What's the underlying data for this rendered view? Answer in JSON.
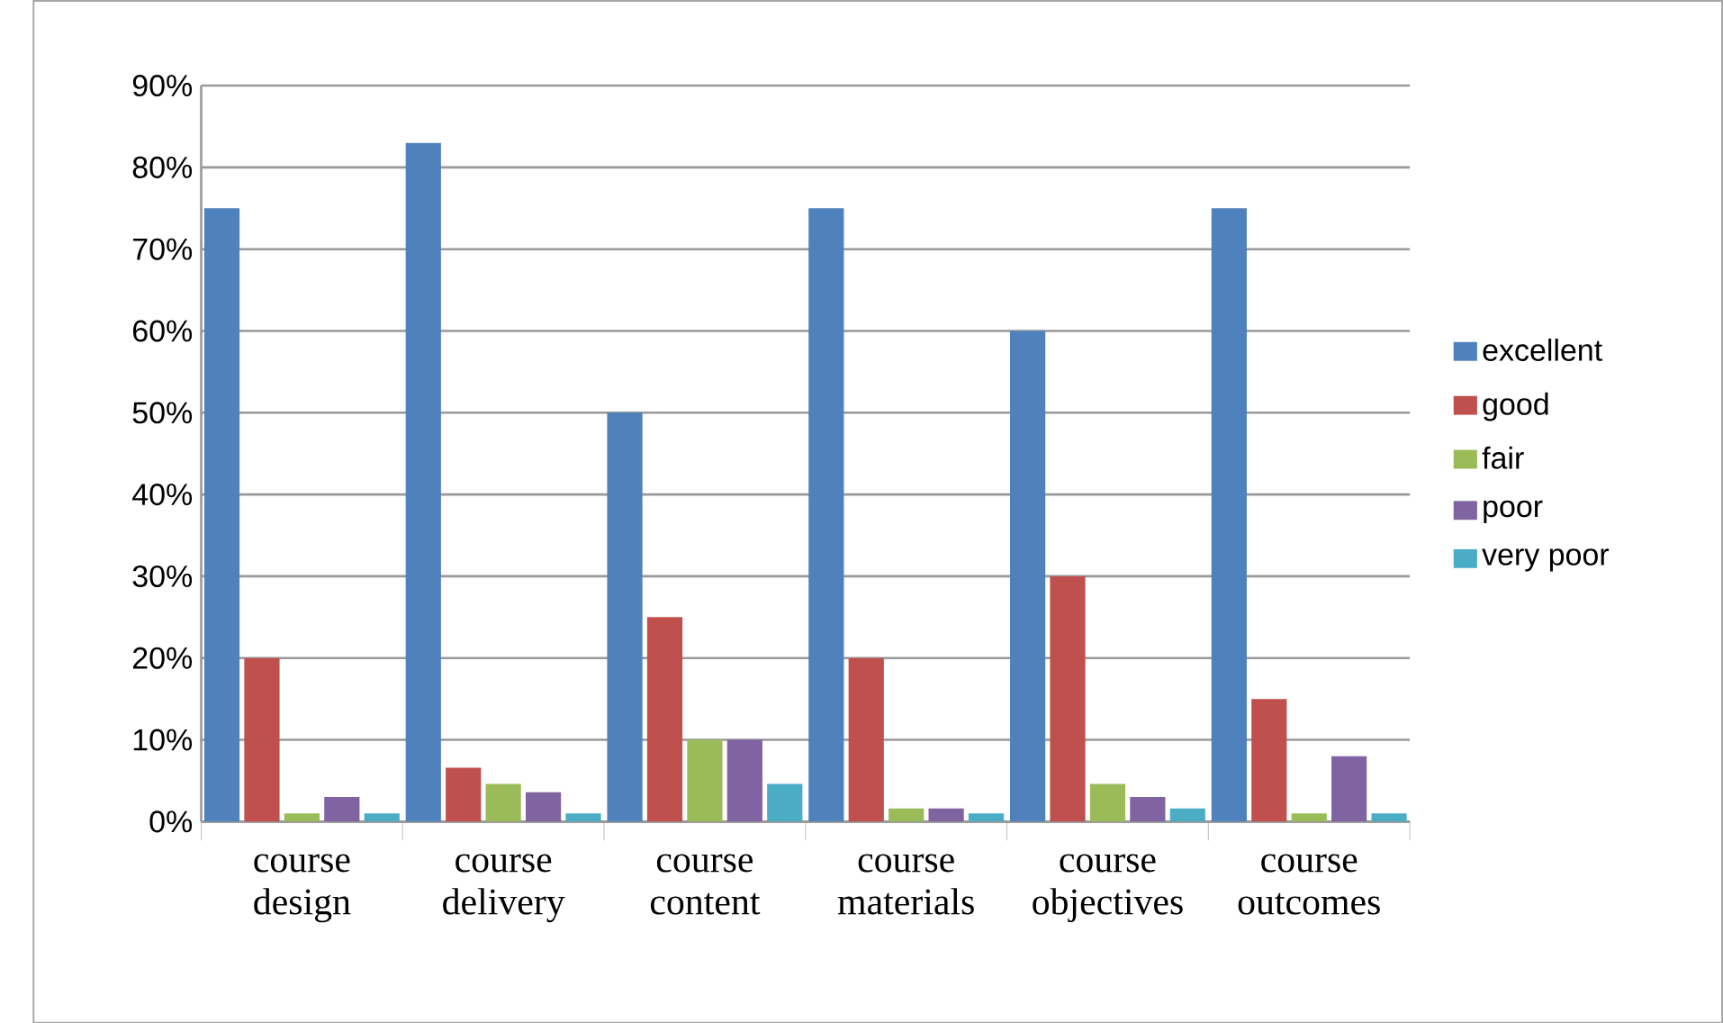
{
  "chart_data": {
    "type": "bar",
    "categories": [
      "course design",
      "course delivery",
      "course content",
      "course materials",
      "course objectives",
      "course outcomes"
    ],
    "series": [
      {
        "name": "excellent",
        "color": "#4f81bd",
        "values": [
          75,
          83,
          50,
          75,
          60,
          75
        ]
      },
      {
        "name": "good",
        "color": "#c0504d",
        "values": [
          20,
          6.6,
          25,
          20,
          30,
          15
        ]
      },
      {
        "name": "fair",
        "color": "#9bbb59",
        "values": [
          1,
          4.6,
          10,
          1.6,
          4.6,
          1
        ]
      },
      {
        "name": "poor",
        "color": "#8064a2",
        "values": [
          3,
          3.6,
          10,
          1.6,
          3,
          8
        ]
      },
      {
        "name": "very poor",
        "color": "#4bacc6",
        "values": [
          1,
          1,
          4.6,
          1,
          1.6,
          1
        ]
      }
    ],
    "ylim": [
      0,
      90
    ],
    "yticks": [
      {
        "value": 0,
        "label": "0%"
      },
      {
        "value": 10,
        "label": "10%"
      },
      {
        "value": 20,
        "label": "20%"
      },
      {
        "value": 30,
        "label": "30%"
      },
      {
        "value": 40,
        "label": "40%"
      },
      {
        "value": 50,
        "label": "50%"
      },
      {
        "value": 60,
        "label": "60%"
      },
      {
        "value": 70,
        "label": "70%"
      },
      {
        "value": 80,
        "label": "80%"
      },
      {
        "value": 90,
        "label": "90%"
      }
    ],
    "grid": "y",
    "legend": "right"
  }
}
